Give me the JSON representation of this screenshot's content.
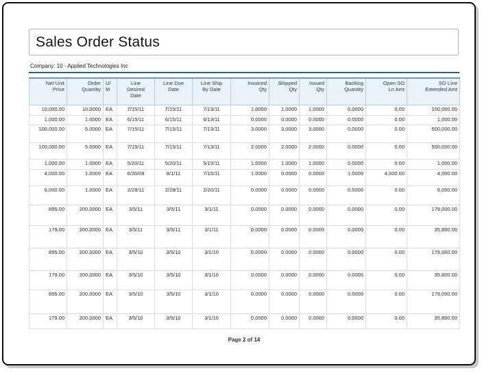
{
  "report": {
    "title": "Sales Order Status",
    "company": "Company: 10 - Applied Technologies Inc",
    "footer": "Page 2 of 14"
  },
  "colors": {
    "page_border": "#0c0c0c",
    "title_box_border": "#b3b3b3",
    "accent_rule_blue": "#2e5c8a",
    "table_top_border_blue": "#6a99c4",
    "table_header_bg": "#e9f2f9",
    "table_header_border": "#b7cfe1",
    "table_row_border": "#dcdcdc"
  },
  "table": {
    "columns": [
      {
        "label": "Net Unit\nPrice",
        "align": "right"
      },
      {
        "label": "Order\nQuantity",
        "align": "right"
      },
      {
        "label": "U/\nM",
        "align": "left"
      },
      {
        "label": "Line\nDesired\nDate",
        "align": "center"
      },
      {
        "label": "Line Due\nDate",
        "align": "center"
      },
      {
        "label": "Line Ship\nBy Date",
        "align": "center"
      },
      {
        "label": "Invoiced\nQty",
        "align": "right"
      },
      {
        "label": "Shipped\nQty",
        "align": "right"
      },
      {
        "label": "Issued\nQty",
        "align": "right"
      },
      {
        "label": "Backlog\nQuantity",
        "align": "right"
      },
      {
        "label": "Open SO\nLn Amt",
        "align": "right"
      },
      {
        "label": "SO Line\nExtended Amt",
        "align": "right"
      }
    ],
    "rows": [
      [
        "10,000.00",
        "10.0000",
        "EA",
        "7/15/11",
        "7/15/11",
        "7/13/11",
        "1.0000",
        "1.0000",
        "1.0000",
        "0.0000",
        "0.00",
        "100,000.00"
      ],
      [
        "1,000.00",
        "1.0000",
        "EA",
        "6/15/11",
        "6/15/11",
        "6/13/11",
        "0.0000",
        "0.0000",
        "0.0000",
        "0.0000",
        "0.00",
        "1,000.00"
      ],
      [
        "100,000.00",
        "5.0000",
        "EA",
        "7/15/11",
        "7/15/11",
        "7/13/11",
        "3.0000",
        "3.0000",
        "3.0000",
        "0.0000",
        "0.00",
        "500,000.00"
      ],
      [
        "100,000.00",
        "5.0000",
        "EA",
        "7/15/11",
        "7/15/11",
        "7/13/11",
        "2.0000",
        "2.0000",
        "2.0000",
        "0.0000",
        "0.00",
        "500,000.00"
      ],
      [
        "1,000.00",
        "1.0000",
        "EA",
        "5/20/11",
        "5/20/11",
        "5/15/11",
        "1.0000",
        "1.0000",
        "1.0000",
        "0.0000",
        "0.00",
        "1,000.00"
      ],
      [
        "4,000.00",
        "1.0000",
        "EA",
        "6/26/09",
        "8/1/11",
        "7/15/11",
        "1.0000",
        "0.0000",
        "0.0000",
        "1.0000",
        "4,000.00",
        "4,000.00"
      ],
      [
        "6,000.00",
        "1.0000",
        "EA",
        "2/28/11",
        "2/28/11",
        "2/20/11",
        "0.0000",
        "0.0000",
        "0.0000",
        "0.0000",
        "0.00",
        "6,000.00"
      ],
      [
        "895.00",
        "200.0000",
        "EA",
        "3/5/11",
        "3/5/11",
        "3/1/11",
        "0.0000",
        "0.0000",
        "0.0000",
        "0.0000",
        "0.00",
        "179,000.00"
      ],
      [
        "179.00",
        "200.0000",
        "EA",
        "3/5/11",
        "3/5/11",
        "3/1/11",
        "0.0000",
        "0.0000",
        "0.0000",
        "0.0000",
        "0.00",
        "35,800.00"
      ],
      [
        "895.00",
        "200.0000",
        "EA",
        "3/5/10",
        "3/5/10",
        "3/1/10",
        "0.0000",
        "0.0000",
        "0.0000",
        "0.0000",
        "0.00",
        "179,000.00"
      ],
      [
        "179.00",
        "200.0000",
        "EA",
        "3/5/10",
        "3/5/10",
        "3/1/10",
        "0.0000",
        "0.0000",
        "0.0000",
        "0.0000",
        "0.00",
        "35,800.00"
      ],
      [
        "895.00",
        "200.0000",
        "EA",
        "3/5/10",
        "3/5/10",
        "3/1/10",
        "0.0000",
        "0.0000",
        "0.0000",
        "0.0000",
        "0.00",
        "179,000.00"
      ],
      [
        "179.00",
        "200.0000",
        "EA",
        "3/5/10",
        "3/5/10",
        "3/1/10",
        "0.0000",
        "0.0000",
        "0.0000",
        "0.0000",
        "0.00",
        "35,800.00"
      ]
    ]
  }
}
